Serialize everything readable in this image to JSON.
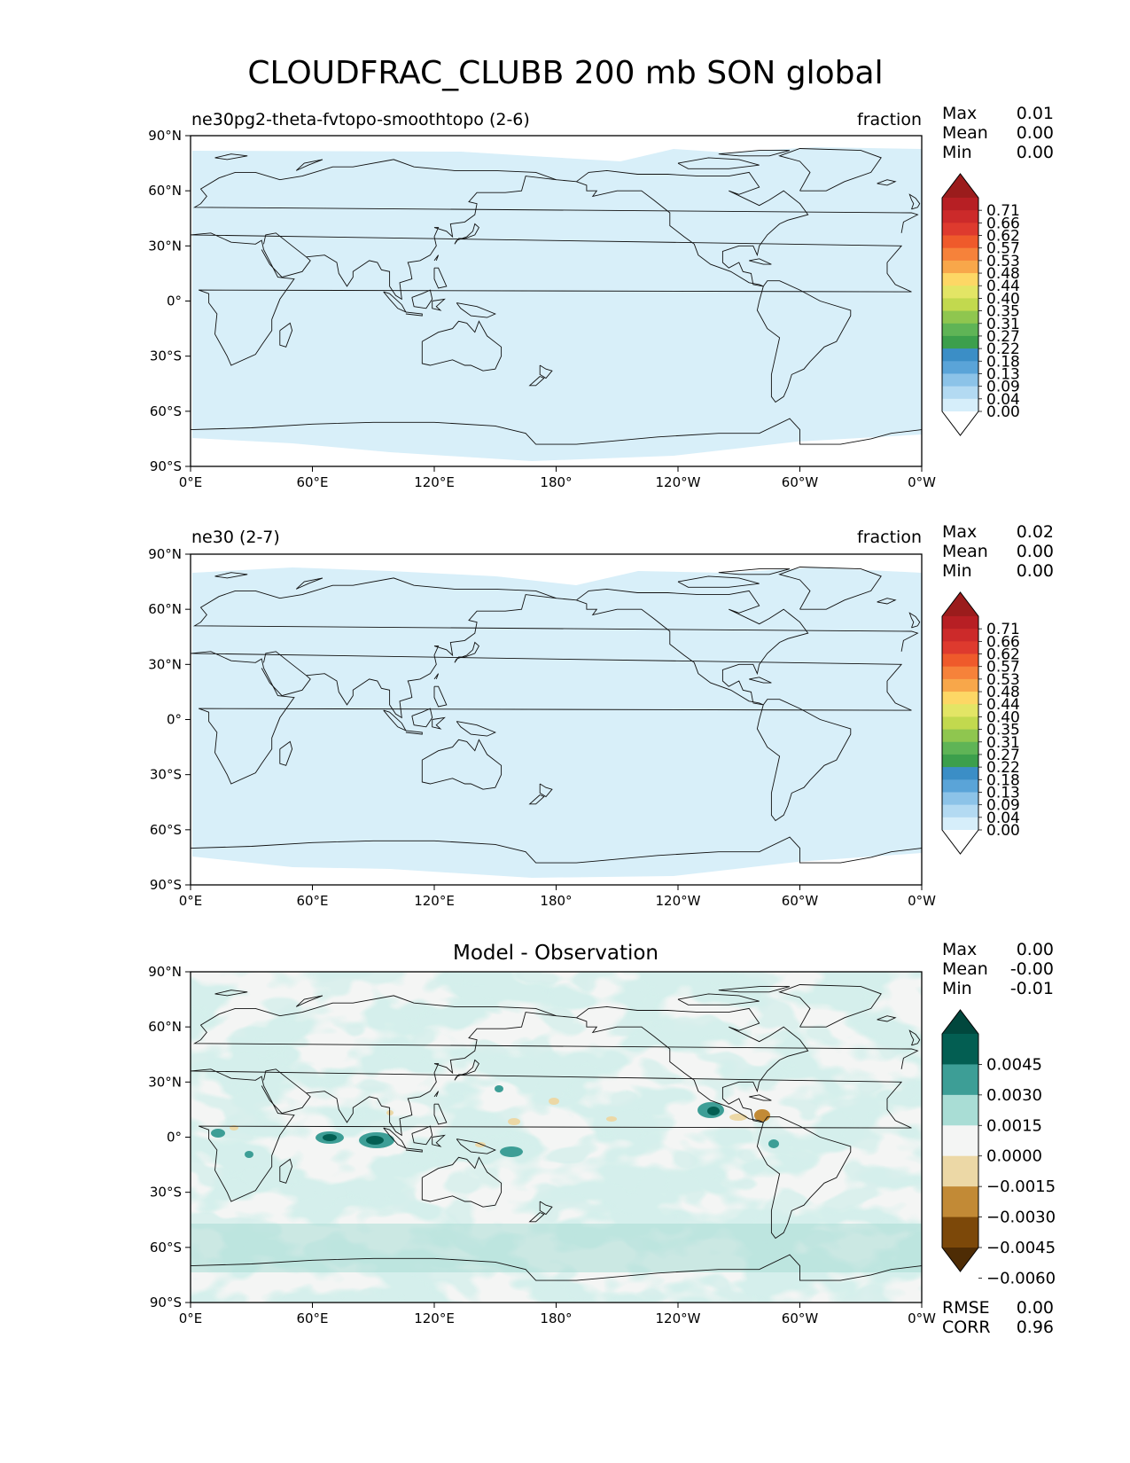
{
  "figure": {
    "title": "CLOUDFRAC_CLUBB 200 mb SON global"
  },
  "chart_data": [
    {
      "type": "heatmap",
      "title": "",
      "left_title": "ne30pg2-theta-fvtopo-smoothtopo (2-6)",
      "units": "fraction",
      "xlabel": "",
      "ylabel": "",
      "x_ticks": [
        "0°E",
        "60°E",
        "120°E",
        "180°",
        "120°W",
        "60°W",
        "0°W"
      ],
      "y_ticks": [
        "90°N",
        "60°N",
        "30°N",
        "0°",
        "30°S",
        "60°S",
        "90°S"
      ],
      "xlim": [
        0,
        360
      ],
      "ylim": [
        -90,
        90
      ],
      "stats": [
        {
          "label": "Max",
          "value": "0.01"
        },
        {
          "label": "Mean",
          "value": "0.00"
        },
        {
          "label": "Min",
          "value": "0.00"
        }
      ],
      "colorbar": {
        "levels": [
          "0.71",
          "0.66",
          "0.62",
          "0.57",
          "0.53",
          "0.48",
          "0.44",
          "0.40",
          "0.35",
          "0.31",
          "0.27",
          "0.22",
          "0.18",
          "0.13",
          "0.09",
          "0.04",
          "0.00"
        ],
        "colors": [
          "#9b1c1c",
          "#b71f24",
          "#cc2a2a",
          "#de3a2e",
          "#ef5a2b",
          "#f6823a",
          "#f8a74a",
          "#fdd765",
          "#e3e565",
          "#c2d94e",
          "#8fc64f",
          "#5fb456",
          "#3c9f4c",
          "#3b8ec6",
          "#5aa4d8",
          "#8cc3e8",
          "#b3daf2",
          "#d6eefa",
          "#ffffff"
        ]
      },
      "field": {
        "dominant_level": "0.00–0.04",
        "dominant_color": "#d8eff9",
        "clear_region": "high latitudes near 70–90°"
      }
    },
    {
      "type": "heatmap",
      "title": "",
      "left_title": "ne30 (2-7)",
      "units": "fraction",
      "xlabel": "",
      "ylabel": "",
      "x_ticks": [
        "0°E",
        "60°E",
        "120°E",
        "180°",
        "120°W",
        "60°W",
        "0°W"
      ],
      "y_ticks": [
        "90°N",
        "60°N",
        "30°N",
        "0°",
        "30°S",
        "60°S",
        "90°S"
      ],
      "xlim": [
        0,
        360
      ],
      "ylim": [
        -90,
        90
      ],
      "stats": [
        {
          "label": "Max",
          "value": "0.02"
        },
        {
          "label": "Mean",
          "value": "0.00"
        },
        {
          "label": "Min",
          "value": "0.00"
        }
      ],
      "colorbar": {
        "levels": [
          "0.71",
          "0.66",
          "0.62",
          "0.57",
          "0.53",
          "0.48",
          "0.44",
          "0.40",
          "0.35",
          "0.31",
          "0.27",
          "0.22",
          "0.18",
          "0.13",
          "0.09",
          "0.04",
          "0.00"
        ],
        "colors": [
          "#9b1c1c",
          "#b71f24",
          "#cc2a2a",
          "#de3a2e",
          "#ef5a2b",
          "#f6823a",
          "#f8a74a",
          "#fdd765",
          "#e3e565",
          "#c2d94e",
          "#8fc64f",
          "#5fb456",
          "#3c9f4c",
          "#3b8ec6",
          "#5aa4d8",
          "#8cc3e8",
          "#b3daf2",
          "#d6eefa",
          "#ffffff"
        ]
      },
      "field": {
        "dominant_level": "0.00–0.04",
        "dominant_color": "#d8eff9",
        "clear_region": "high latitudes near 70–90°"
      }
    },
    {
      "type": "heatmap",
      "title": "Model - Observation",
      "left_title": "",
      "units": "",
      "xlabel": "",
      "ylabel": "",
      "x_ticks": [
        "0°E",
        "60°E",
        "120°E",
        "180°",
        "120°W",
        "60°W",
        "0°W"
      ],
      "y_ticks": [
        "90°N",
        "60°N",
        "30°N",
        "0°",
        "30°S",
        "60°S",
        "90°S"
      ],
      "xlim": [
        0,
        360
      ],
      "ylim": [
        -90,
        90
      ],
      "stats": [
        {
          "label": "Max",
          "value": "0.00"
        },
        {
          "label": "Mean",
          "value": "-0.00"
        },
        {
          "label": "Min",
          "value": "-0.01"
        }
      ],
      "bottom_stats": [
        {
          "label": "RMSE",
          "value": "0.00"
        },
        {
          "label": "CORR",
          "value": "0.96"
        }
      ],
      "colorbar": {
        "levels": [
          "0.0045",
          "0.0030",
          "0.0015",
          "0.0000",
          "−0.0015",
          "−0.0030",
          "−0.0045",
          "−0.0060"
        ],
        "colors": [
          "#01473d",
          "#035e52",
          "#3d9e96",
          "#a9ddd5",
          "#f4f5f4",
          "#ecd8a6",
          "#c28a36",
          "#7c4809",
          "#4e2c05"
        ]
      },
      "field": {
        "dominant_colors": [
          "#a9ddd5",
          "#f4f5f4"
        ],
        "features": "scattered positive patches worldwide; strong positive near tropical Indian Ocean and Central America; small negative patches near 0–15°N"
      }
    }
  ]
}
